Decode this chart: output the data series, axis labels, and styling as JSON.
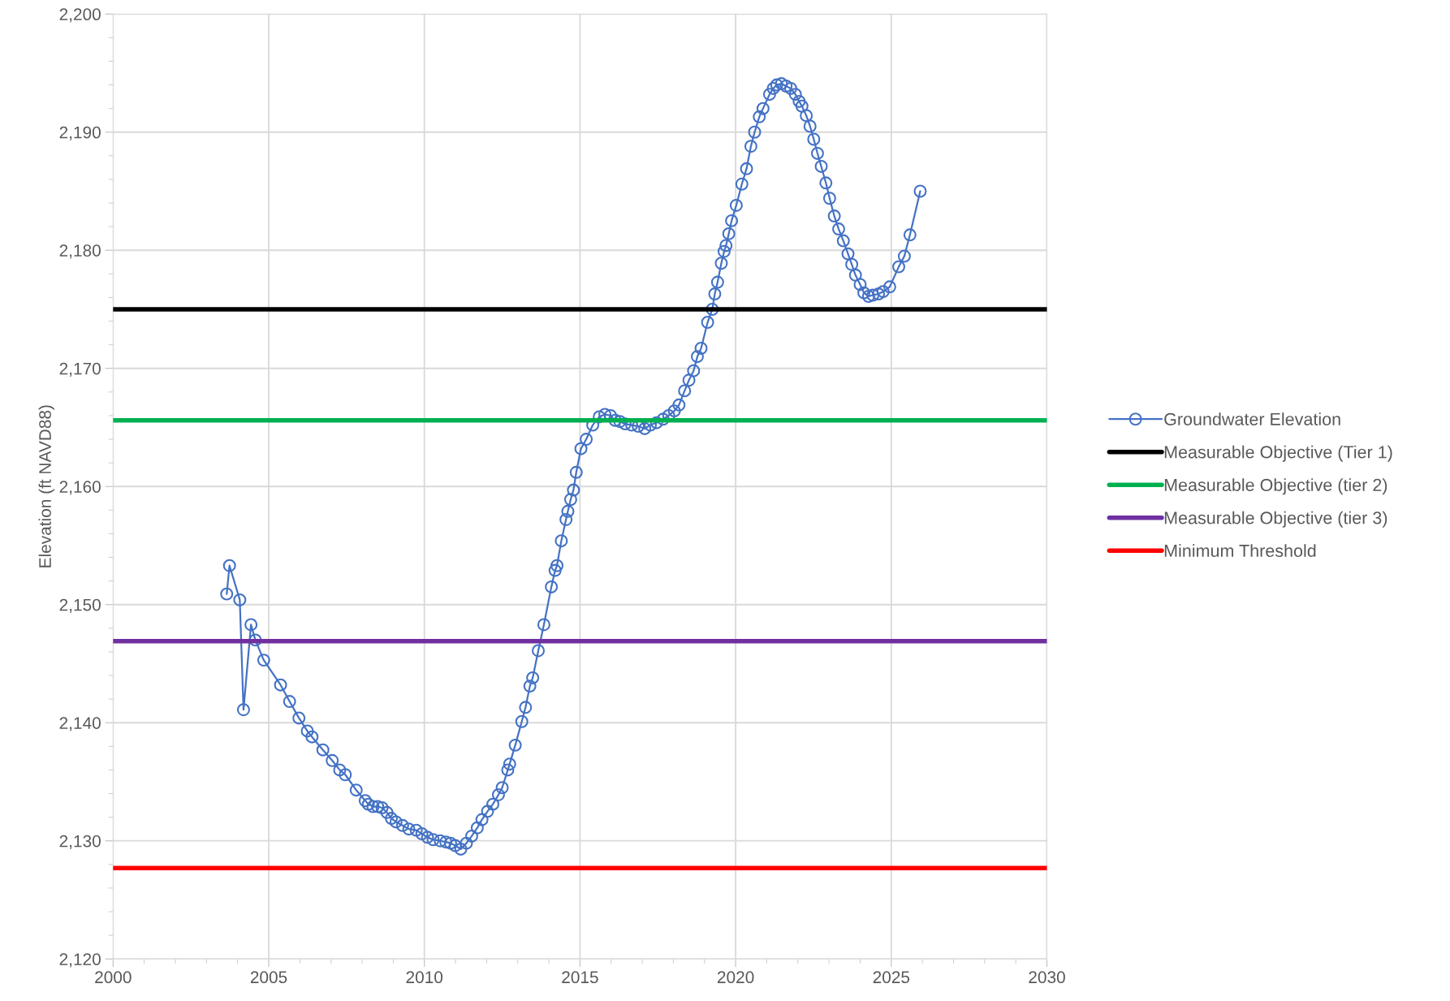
{
  "chart_data": {
    "type": "line",
    "ylabel": "Elevation (ft NAVD88)",
    "xlim": [
      2000,
      2030
    ],
    "xticks": [
      2000,
      2005,
      2010,
      2015,
      2020,
      2025,
      2030
    ],
    "ylim": [
      2120,
      2200
    ],
    "yticks": [
      {
        "value": 2120,
        "label": "2,120"
      },
      {
        "value": 2130,
        "label": "2,130"
      },
      {
        "value": 2140,
        "label": "2,140"
      },
      {
        "value": 2150,
        "label": "2,150"
      },
      {
        "value": 2160,
        "label": "2,160"
      },
      {
        "value": 2170,
        "label": "2,170"
      },
      {
        "value": 2180,
        "label": "2,180"
      },
      {
        "value": 2190,
        "label": "2,190"
      },
      {
        "value": 2200,
        "label": "2,200"
      }
    ],
    "grid": true,
    "legend": "right",
    "marker": "circle",
    "line_style": "solid",
    "series": [
      {
        "name": "Groundwater Elevation",
        "color": "#4472c4",
        "x": [
          2003.65,
          2003.74,
          2004.07,
          2004.19,
          2004.43,
          2004.57,
          2004.84,
          2005.38,
          2005.67,
          2005.97,
          2006.24,
          2006.39,
          2006.74,
          2007.04,
          2007.28,
          2007.46,
          2007.81,
          2008.1,
          2008.2,
          2008.35,
          2008.5,
          2008.64,
          2008.8,
          2008.94,
          2009.09,
          2009.3,
          2009.5,
          2009.74,
          2009.92,
          2010.1,
          2010.28,
          2010.51,
          2010.69,
          2010.84,
          2010.99,
          2011.17,
          2011.35,
          2011.52,
          2011.7,
          2011.85,
          2012.03,
          2012.2,
          2012.38,
          2012.5,
          2012.68,
          2012.74,
          2012.92,
          2013.13,
          2013.25,
          2013.39,
          2013.48,
          2013.66,
          2013.84,
          2014.08,
          2014.2,
          2014.26,
          2014.4,
          2014.55,
          2014.61,
          2014.7,
          2014.79,
          2014.88,
          2015.03,
          2015.2,
          2015.41,
          2015.62,
          2015.8,
          2015.98,
          2016.13,
          2016.28,
          2016.45,
          2016.66,
          2016.87,
          2017.08,
          2017.26,
          2017.46,
          2017.67,
          2017.85,
          2018.03,
          2018.18,
          2018.36,
          2018.5,
          2018.65,
          2018.77,
          2018.89,
          2019.1,
          2019.25,
          2019.33,
          2019.42,
          2019.54,
          2019.63,
          2019.69,
          2019.78,
          2019.87,
          2020.02,
          2020.2,
          2020.35,
          2020.49,
          2020.61,
          2020.76,
          2020.88,
          2021.09,
          2021.21,
          2021.32,
          2021.47,
          2021.62,
          2021.77,
          2021.92,
          2022.04,
          2022.13,
          2022.27,
          2022.39,
          2022.51,
          2022.63,
          2022.75,
          2022.9,
          2023.02,
          2023.17,
          2023.31,
          2023.46,
          2023.61,
          2023.73,
          2023.85,
          2024.0,
          2024.12,
          2024.27,
          2024.41,
          2024.59,
          2024.74,
          2024.95,
          2025.24,
          2025.42,
          2025.6,
          2025.93
        ],
        "values": [
          2150.9,
          2153.3,
          2150.4,
          2141.1,
          2148.3,
          2147.0,
          2145.3,
          2143.2,
          2141.8,
          2140.4,
          2139.3,
          2138.8,
          2137.7,
          2136.8,
          2136.0,
          2135.6,
          2134.3,
          2133.4,
          2133.1,
          2132.9,
          2132.9,
          2132.8,
          2132.4,
          2131.9,
          2131.6,
          2131.3,
          2131.0,
          2130.9,
          2130.6,
          2130.3,
          2130.1,
          2130.0,
          2129.9,
          2129.8,
          2129.6,
          2129.3,
          2129.8,
          2130.4,
          2131.1,
          2131.8,
          2132.5,
          2133.1,
          2133.9,
          2134.5,
          2136.0,
          2136.5,
          2138.1,
          2140.1,
          2141.3,
          2143.1,
          2143.8,
          2146.1,
          2148.3,
          2151.5,
          2152.9,
          2153.3,
          2155.4,
          2157.2,
          2157.9,
          2158.9,
          2159.7,
          2161.2,
          2163.2,
          2164.0,
          2165.2,
          2165.9,
          2166.1,
          2166.0,
          2165.6,
          2165.5,
          2165.3,
          2165.2,
          2165.1,
          2164.9,
          2165.2,
          2165.4,
          2165.7,
          2166.0,
          2166.4,
          2166.9,
          2168.1,
          2169.0,
          2169.8,
          2171.0,
          2171.7,
          2173.9,
          2175.0,
          2176.3,
          2177.3,
          2178.9,
          2179.9,
          2180.4,
          2181.4,
          2182.5,
          2183.8,
          2185.6,
          2186.9,
          2188.8,
          2190.0,
          2191.3,
          2192.0,
          2193.2,
          2193.7,
          2194.0,
          2194.1,
          2193.9,
          2193.7,
          2193.2,
          2192.6,
          2192.2,
          2191.4,
          2190.5,
          2189.4,
          2188.2,
          2187.1,
          2185.7,
          2184.4,
          2182.9,
          2181.8,
          2180.8,
          2179.7,
          2178.8,
          2177.9,
          2177.1,
          2176.4,
          2176.1,
          2176.2,
          2176.3,
          2176.5,
          2176.9,
          2178.6,
          2179.5,
          2181.3,
          2185.0
        ]
      }
    ],
    "ref_lines": [
      {
        "axis": "y",
        "value": 2175.0,
        "label": "Measurable Objective (Tier 1)",
        "color": "#000000"
      },
      {
        "axis": "y",
        "value": 2165.6,
        "label": "Measurable Objective (tier 2)",
        "color": "#00b050"
      },
      {
        "axis": "y",
        "value": 2146.9,
        "label": "Measurable Objective (tier 3)",
        "color": "#7030a0"
      },
      {
        "axis": "y",
        "value": 2127.7,
        "label": "Minimum Threshold",
        "color": "#ff0000"
      }
    ]
  }
}
